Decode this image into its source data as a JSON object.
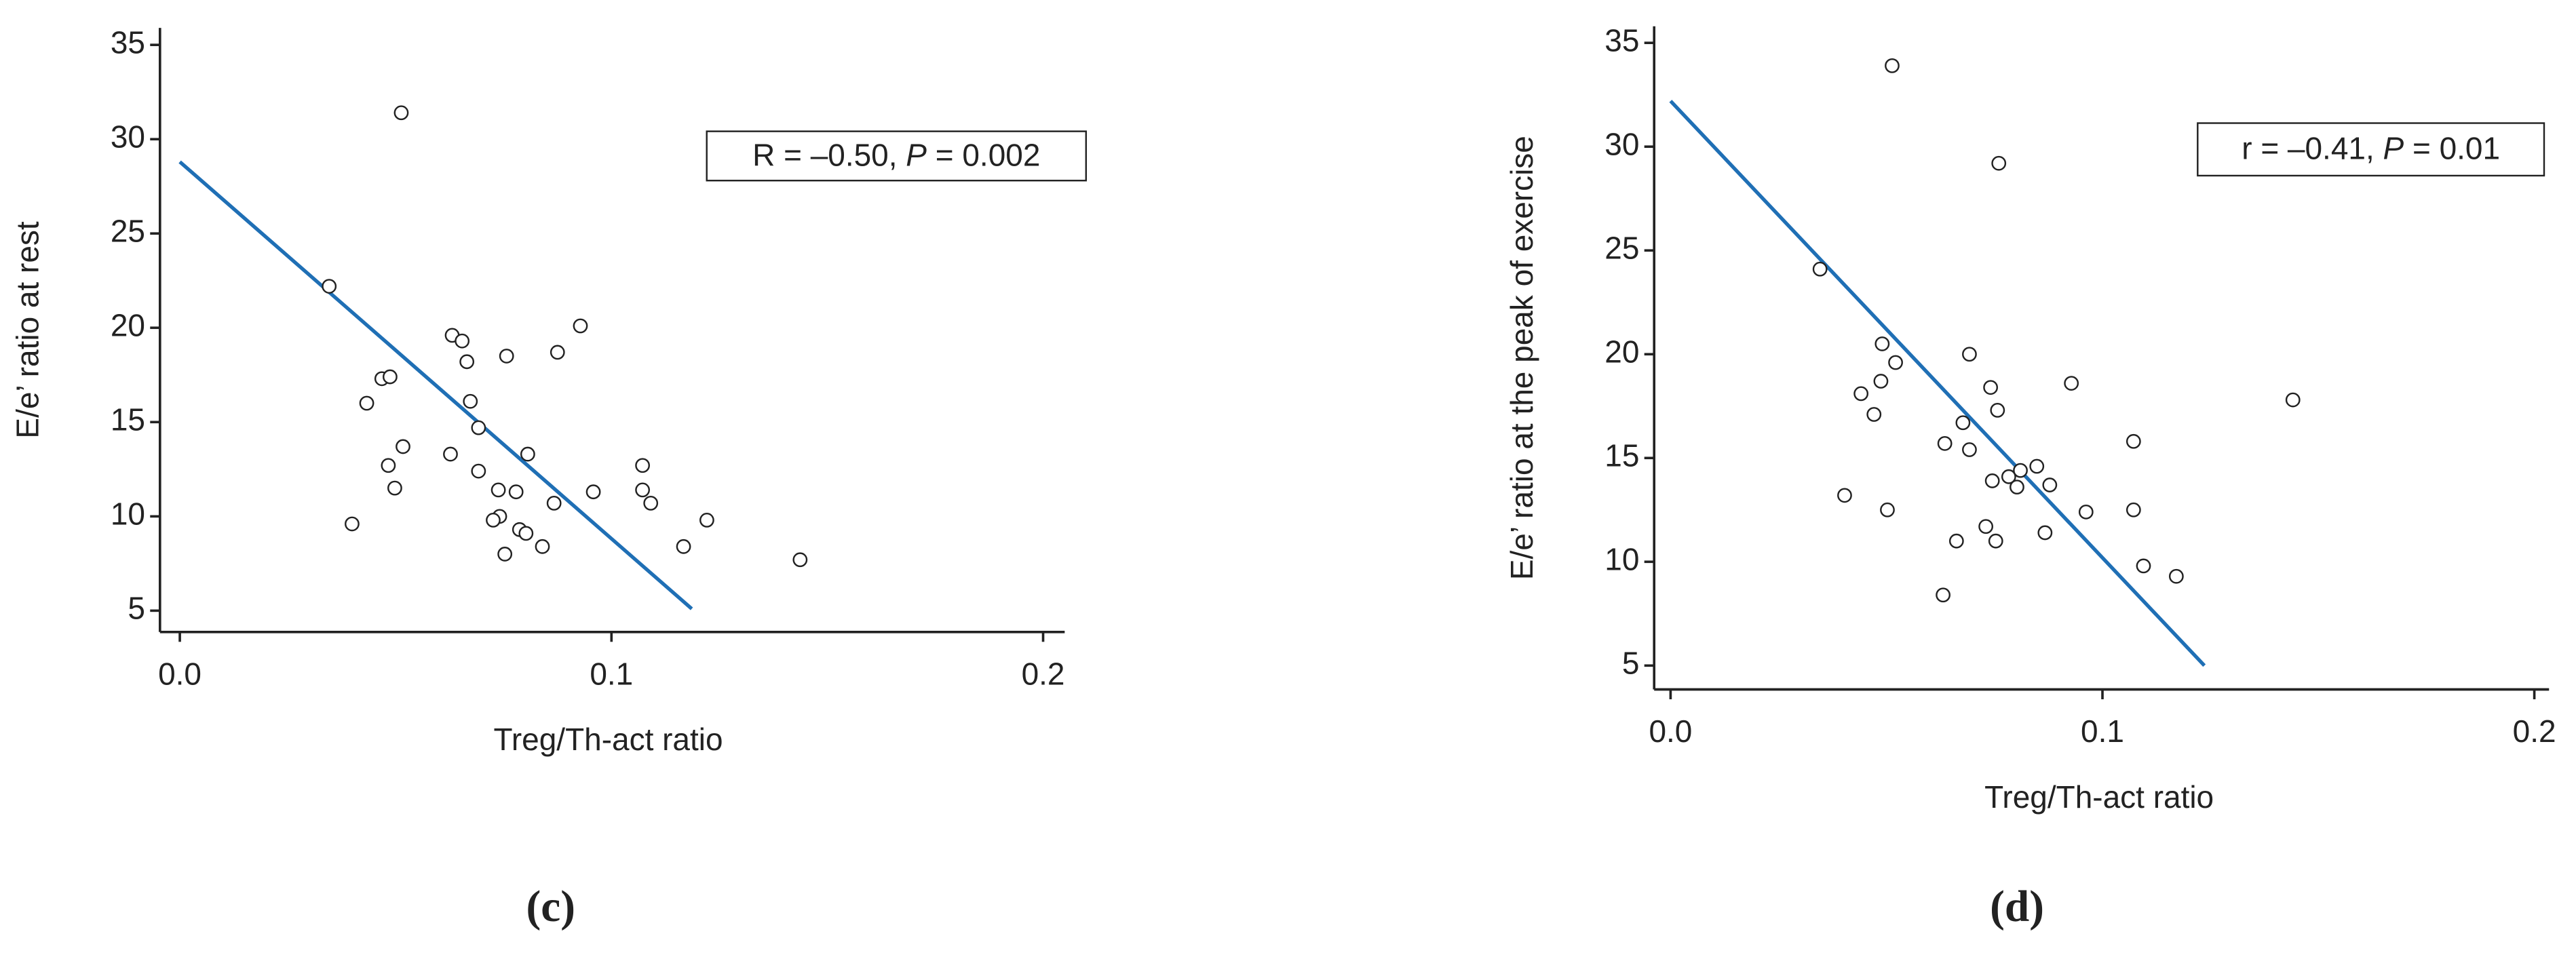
{
  "chart_data": [
    {
      "type": "scatter",
      "panel": "(c)",
      "x_label": "Treg/Th-act ratio",
      "y_label": "E/e’ ratio at rest",
      "annotation": [
        "R = –0.50, ",
        "P",
        " = 0.002"
      ],
      "x": [
        0.0346,
        0.0513,
        0.0433,
        0.0468,
        0.0487,
        0.0517,
        0.0483,
        0.0498,
        0.0399,
        0.0631,
        0.0654,
        0.0665,
        0.0673,
        0.0692,
        0.0627,
        0.0692,
        0.0738,
        0.0741,
        0.0726,
        0.0753,
        0.0757,
        0.0779,
        0.0787,
        0.0802,
        0.0806,
        0.084,
        0.0867,
        0.0875,
        0.0928,
        0.0958,
        0.1072,
        0.1072,
        0.1091,
        0.1167,
        0.1221,
        0.1437
      ],
      "values": [
        22.2,
        31.4,
        16.0,
        17.3,
        17.4,
        13.7,
        12.7,
        11.5,
        9.6,
        19.6,
        19.3,
        18.2,
        16.1,
        14.7,
        13.3,
        12.4,
        11.4,
        10.0,
        9.8,
        8.0,
        18.5,
        11.3,
        9.3,
        9.1,
        13.3,
        8.4,
        10.7,
        18.7,
        20.1,
        11.3,
        12.7,
        11.4,
        10.7,
        8.4,
        9.8,
        7.7
      ],
      "point_color": "#ffffff",
      "point_stroke": "#222222",
      "fit": {
        "x": [
          0,
          0.1186
        ],
        "y": [
          28.8,
          5.1
        ],
        "color": "#1f6fb5"
      },
      "xlim": [
        -0.0046,
        0.205
      ],
      "ylim": [
        3.87,
        35.9
      ],
      "xticks": [
        {
          "value": 0,
          "label": "0.0"
        },
        0.1,
        0.2
      ],
      "yticks": [
        5,
        10,
        15,
        20,
        25,
        30,
        35
      ]
    },
    {
      "type": "scatter",
      "panel": "(d)",
      "x_label": "Treg/Th-act ratio",
      "y_label": "E/e’ ratio at the peak of exercise",
      "annotation": [
        "r = –0.41, ",
        "P",
        " = 0.01"
      ],
      "x": [
        0.0346,
        0.0513,
        0.076,
        0.049,
        0.0521,
        0.0487,
        0.0441,
        0.0471,
        0.0403,
        0.0502,
        0.0692,
        0.0741,
        0.0757,
        0.0677,
        0.0635,
        0.0692,
        0.0745,
        0.0783,
        0.0802,
        0.081,
        0.0848,
        0.0878,
        0.0928,
        0.0962,
        0.1072,
        0.1072,
        0.1095,
        0.1171,
        0.0867,
        0.073,
        0.0753,
        0.0662,
        0.0631,
        0.1441
      ],
      "values": [
        24.1,
        33.9,
        29.2,
        20.5,
        19.6,
        18.7,
        18.1,
        17.1,
        13.2,
        12.5,
        20.0,
        18.4,
        17.3,
        16.7,
        15.7,
        15.4,
        13.9,
        14.1,
        13.6,
        14.4,
        14.6,
        13.7,
        18.6,
        12.4,
        15.8,
        12.5,
        9.8,
        9.3,
        11.4,
        11.7,
        11.0,
        11.0,
        8.4,
        17.8
      ],
      "point_color": "#ffffff",
      "point_stroke": "#222222",
      "fit": {
        "x": [
          0,
          0.1236
        ],
        "y": [
          32.2,
          5.0
        ],
        "color": "#1f6fb5"
      },
      "xlim": [
        -0.0038,
        0.2034
      ],
      "ylim": [
        3.85,
        35.8
      ],
      "xticks": [
        {
          "value": 0,
          "label": "0.0"
        },
        0.1,
        0.2
      ],
      "yticks": [
        5,
        10,
        15,
        20,
        25,
        30,
        35
      ]
    }
  ]
}
